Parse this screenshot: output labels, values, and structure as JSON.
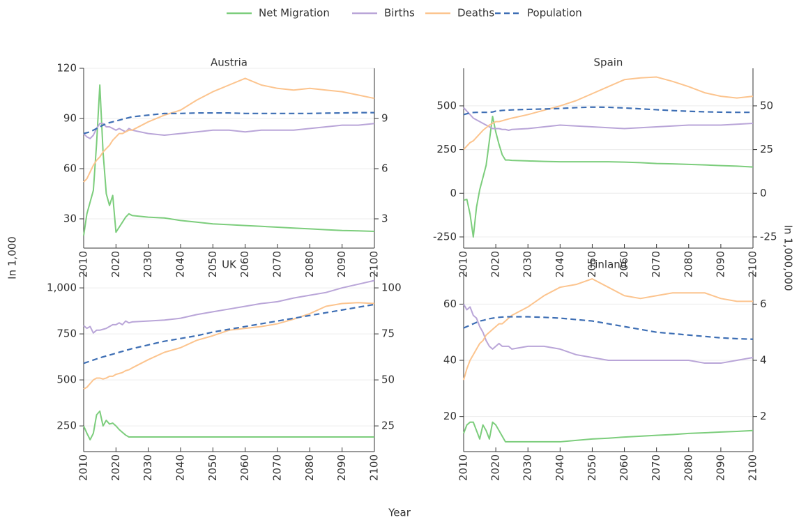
{
  "legend": "top",
  "xlabel": "Year",
  "ylabel": "In 1,000",
  "y2label": "In 1,000,000",
  "grid": true,
  "chart_data": [
    {
      "type": "line",
      "title": "Austria",
      "x": [
        2010,
        2011,
        2012,
        2013,
        2014,
        2015,
        2016,
        2017,
        2018,
        2019,
        2020,
        2021,
        2022,
        2023,
        2024,
        2025,
        2030,
        2035,
        2040,
        2045,
        2050,
        2055,
        2060,
        2065,
        2070,
        2075,
        2080,
        2085,
        2090,
        2095,
        2100
      ],
      "xlim": [
        2010,
        2100
      ],
      "xticks": [
        2010,
        2020,
        2030,
        2040,
        2050,
        2060,
        2070,
        2080,
        2090,
        2100
      ],
      "ylim": [
        15,
        120
      ],
      "yticks": [
        30,
        60,
        90,
        120
      ],
      "y2lim": [
        1.5,
        12
      ],
      "y2ticks": [
        3,
        6,
        9
      ],
      "series": [
        {
          "name": "Net Migration",
          "color": "#7ccd7c",
          "values": [
            20,
            33,
            40,
            47,
            75,
            110,
            70,
            45,
            38,
            44,
            22,
            25,
            28,
            31,
            33,
            32,
            31,
            30.5,
            29,
            28,
            27,
            26.5,
            26,
            25.5,
            25,
            24.5,
            24,
            23.5,
            23,
            22.8,
            22.5
          ]
        },
        {
          "name": "Births",
          "color": "#b9a5d8",
          "values": [
            81,
            79,
            78,
            80,
            84,
            87,
            87,
            85,
            85,
            84,
            83,
            84,
            83,
            82,
            84,
            83,
            81,
            80,
            81,
            82,
            83,
            83,
            82,
            83,
            83,
            83,
            84,
            85,
            86,
            86,
            87
          ]
        },
        {
          "name": "Deaths",
          "color": "#fcc48e",
          "values": [
            52,
            54,
            58,
            62,
            65,
            67,
            70,
            72,
            74,
            77,
            79,
            81,
            81,
            82,
            83,
            83,
            88,
            92,
            95,
            101,
            106,
            110,
            114,
            110,
            108,
            107,
            108,
            107,
            106,
            104,
            102
          ]
        },
        {
          "name": "Population",
          "color": "#3d6eb4",
          "linestyle": "dashed",
          "axis": "y2",
          "values": [
            8.1,
            8.15,
            8.2,
            8.3,
            8.4,
            8.5,
            8.6,
            8.7,
            8.75,
            8.8,
            8.85,
            8.9,
            8.95,
            9.0,
            9.05,
            9.1,
            9.2,
            9.3,
            9.3,
            9.33,
            9.33,
            9.33,
            9.3,
            9.3,
            9.3,
            9.3,
            9.3,
            9.32,
            9.33,
            9.35,
            9.35
          ]
        }
      ]
    },
    {
      "type": "line",
      "title": "Spain",
      "x": [
        2010,
        2011,
        2012,
        2013,
        2014,
        2015,
        2016,
        2017,
        2018,
        2019,
        2020,
        2021,
        2022,
        2023,
        2024,
        2025,
        2030,
        2035,
        2040,
        2045,
        2050,
        2055,
        2060,
        2065,
        2070,
        2075,
        2080,
        2085,
        2090,
        2095,
        2100
      ],
      "xlim": [
        2010,
        2100
      ],
      "xticks": [
        2010,
        2020,
        2030,
        2040,
        2050,
        2060,
        2070,
        2080,
        2090,
        2100
      ],
      "ylim": [
        -290,
        715
      ],
      "yticks": [
        -250,
        0,
        250,
        500
      ],
      "y2lim": [
        -29,
        71.5
      ],
      "y2ticks": [
        -25,
        0,
        25,
        50
      ],
      "series": [
        {
          "color": "#7ccd7c",
          "values": [
            -40,
            -35,
            -120,
            -250,
            -80,
            20,
            90,
            160,
            300,
            440,
            350,
            280,
            220,
            190,
            190,
            188,
            185,
            182,
            180,
            180,
            180,
            180,
            178,
            175,
            170,
            168,
            165,
            162,
            158,
            155,
            150
          ]
        },
        {
          "color": "#b9a5d8",
          "values": [
            490,
            470,
            450,
            430,
            420,
            410,
            400,
            390,
            380,
            370,
            370,
            370,
            365,
            365,
            360,
            365,
            370,
            380,
            390,
            385,
            380,
            375,
            370,
            375,
            380,
            385,
            390,
            390,
            390,
            395,
            400
          ]
        },
        {
          "color": "#fcc48e",
          "values": [
            250,
            270,
            290,
            300,
            320,
            340,
            360,
            375,
            390,
            400,
            410,
            410,
            415,
            420,
            425,
            430,
            450,
            475,
            500,
            530,
            570,
            610,
            650,
            660,
            665,
            640,
            610,
            575,
            555,
            545,
            555
          ]
        },
        {
          "color": "#3d6eb4",
          "linestyle": "dashed",
          "axis": "y2",
          "values": [
            45,
            45.5,
            46,
            46.2,
            46.3,
            46.3,
            46.3,
            46.3,
            46.4,
            46.5,
            47,
            47.2,
            47.4,
            47.5,
            47.6,
            47.7,
            48,
            48.2,
            48.5,
            49,
            49.3,
            49.2,
            48.8,
            48.3,
            47.8,
            47.3,
            46.9,
            46.6,
            46.4,
            46.3,
            46.3
          ]
        }
      ]
    },
    {
      "type": "line",
      "title": "UK",
      "x": [
        2010,
        2011,
        2012,
        2013,
        2014,
        2015,
        2016,
        2017,
        2018,
        2019,
        2020,
        2021,
        2022,
        2023,
        2024,
        2025,
        2030,
        2035,
        2040,
        2045,
        2050,
        2055,
        2060,
        2065,
        2070,
        2075,
        2080,
        2085,
        2090,
        2095,
        2100
      ],
      "xlim": [
        2010,
        2100
      ],
      "xticks": [
        2010,
        2020,
        2030,
        2040,
        2050,
        2060,
        2070,
        2080,
        2090,
        2100
      ],
      "ylim": [
        133,
        1095
      ],
      "yticks": [
        250,
        500,
        750,
        {
          "value": 1000,
          "label": "1,000"
        }
      ],
      "y2lim": [
        13.3,
        109.5
      ],
      "y2ticks": [
        25,
        50,
        75,
        100
      ],
      "series": [
        {
          "color": "#7ccd7c",
          "values": [
            250,
            210,
            175,
            210,
            310,
            330,
            250,
            280,
            260,
            265,
            250,
            230,
            215,
            200,
            190,
            190,
            190,
            190,
            190,
            190,
            190,
            190,
            190,
            190,
            190,
            190,
            190,
            190,
            190,
            190,
            190
          ]
        },
        {
          "color": "#b9a5d8",
          "values": [
            795,
            780,
            790,
            755,
            770,
            770,
            775,
            780,
            790,
            800,
            800,
            810,
            800,
            820,
            810,
            815,
            820,
            825,
            835,
            855,
            870,
            885,
            900,
            915,
            925,
            945,
            960,
            975,
            1000,
            1020,
            1040
          ]
        },
        {
          "color": "#fcc48e",
          "values": [
            450,
            460,
            480,
            500,
            510,
            510,
            505,
            510,
            520,
            520,
            530,
            535,
            540,
            550,
            555,
            565,
            610,
            650,
            675,
            715,
            740,
            770,
            780,
            790,
            805,
            830,
            860,
            900,
            915,
            920,
            915
          ]
        },
        {
          "color": "#3d6eb4",
          "linestyle": "dashed",
          "axis": "y2",
          "values": [
            59,
            59.6,
            60.2,
            60.8,
            61.4,
            62,
            62.5,
            63,
            63.5,
            64,
            64.5,
            65,
            65.5,
            66,
            66.5,
            67,
            69,
            71,
            72.5,
            74,
            76,
            77.5,
            79,
            80.5,
            82,
            83.5,
            85,
            86.5,
            88,
            89.5,
            91
          ]
        }
      ]
    },
    {
      "type": "line",
      "title": "Finland",
      "x": [
        2010,
        2011,
        2012,
        2013,
        2014,
        2015,
        2016,
        2017,
        2018,
        2019,
        2020,
        2021,
        2022,
        2023,
        2024,
        2025,
        2030,
        2035,
        2040,
        2045,
        2050,
        2055,
        2060,
        2065,
        2070,
        2075,
        2080,
        2085,
        2090,
        2095,
        2100
      ],
      "xlim": [
        2010,
        2100
      ],
      "xticks": [
        2010,
        2020,
        2030,
        2040,
        2050,
        2060,
        2070,
        2080,
        2090,
        2100
      ],
      "ylim": [
        9,
        72
      ],
      "yticks": [
        20,
        40,
        60
      ],
      "y2lim": [
        0.9,
        7.2
      ],
      "y2ticks": [
        2,
        4,
        6
      ],
      "series": [
        {
          "color": "#7ccd7c",
          "values": [
            14,
            17,
            18,
            18,
            15,
            12,
            17,
            15,
            12,
            18,
            17,
            15,
            13,
            11,
            11,
            11,
            11,
            11,
            11,
            11.5,
            12,
            12.3,
            12.7,
            13,
            13.3,
            13.6,
            14,
            14.2,
            14.5,
            14.7,
            15
          ]
        },
        {
          "color": "#b9a5d8",
          "values": [
            60,
            58,
            59,
            56,
            55,
            52,
            50,
            47,
            45,
            44,
            45,
            46,
            45,
            45,
            45,
            44,
            45,
            45,
            44,
            42,
            41,
            40,
            40,
            40,
            40,
            40,
            40,
            39,
            39,
            40,
            41
          ]
        },
        {
          "color": "#fcc48e",
          "values": [
            33,
            37,
            40,
            42,
            44,
            46,
            47,
            49,
            50,
            51,
            52,
            53,
            53,
            54,
            55,
            56,
            59,
            63,
            66,
            67,
            69,
            66,
            63,
            62,
            63,
            64,
            64,
            64,
            62,
            61,
            61
          ]
        },
        {
          "color": "#3d6eb4",
          "linestyle": "dashed",
          "axis": "y2",
          "values": [
            5.15,
            5.2,
            5.25,
            5.3,
            5.35,
            5.4,
            5.42,
            5.45,
            5.48,
            5.5,
            5.52,
            5.53,
            5.54,
            5.55,
            5.55,
            5.55,
            5.55,
            5.53,
            5.5,
            5.45,
            5.4,
            5.3,
            5.2,
            5.1,
            5.0,
            4.95,
            4.9,
            4.85,
            4.8,
            4.77,
            4.75
          ]
        }
      ]
    }
  ]
}
